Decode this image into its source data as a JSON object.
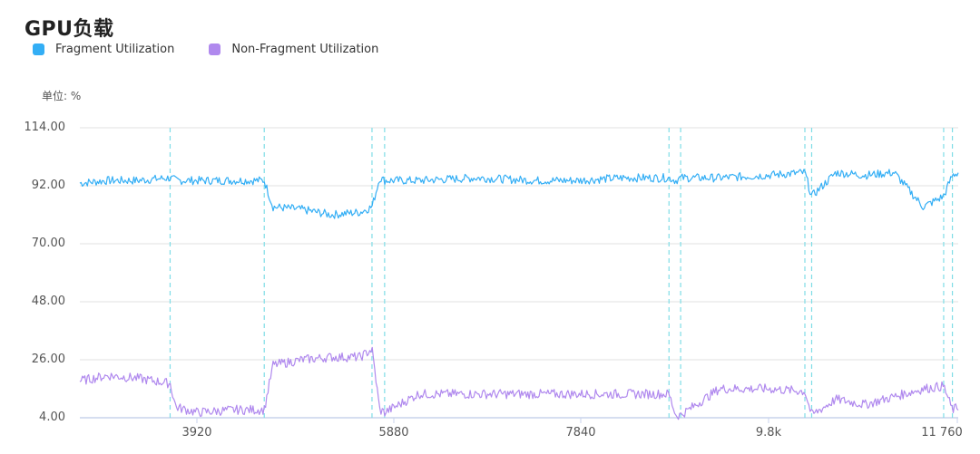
{
  "header": {
    "title": "GPU负载"
  },
  "legend": [
    {
      "label": "Fragment Utilization",
      "color": "#33aef5"
    },
    {
      "label": "Non-Fragment Utilization",
      "color": "#b089ee"
    }
  ],
  "unit_label": "单位: %",
  "chart_data": {
    "type": "line",
    "title": "GPU负载",
    "ylabel": "单位: %",
    "xlabel": "",
    "ylim": [
      4,
      114
    ],
    "yticks": [
      "114.00",
      "92.00",
      "70.00",
      "48.00",
      "26.00",
      "4.00"
    ],
    "xticks": [
      "3920",
      "5880",
      "7840",
      "9.8k",
      "11 760"
    ],
    "xlim": [
      2710,
      11760
    ],
    "grid": true,
    "legend_position": "top-left",
    "marker_lines_x": [
      3640,
      4610,
      5720,
      5850,
      8780,
      8900,
      10180,
      10250,
      11610,
      11700
    ],
    "x": [
      2710,
      3000,
      3300,
      3640,
      3700,
      3920,
      4300,
      4610,
      4700,
      5000,
      5300,
      5600,
      5720,
      5800,
      5850,
      6200,
      6800,
      7400,
      7840,
      8300,
      8780,
      8850,
      8900,
      9300,
      9800,
      10180,
      10250,
      10500,
      10800,
      11100,
      11400,
      11610,
      11700,
      11760
    ],
    "series": [
      {
        "name": "Fragment Utilization",
        "color": "#33aef5",
        "values": [
          93,
          94,
          94,
          95,
          94,
          94,
          94,
          94,
          84,
          83,
          81,
          82,
          84,
          95,
          94,
          94,
          95,
          94,
          94,
          95,
          95,
          94,
          95,
          95,
          96,
          97,
          88,
          97,
          96,
          97,
          84,
          88,
          96,
          97
        ]
      },
      {
        "name": "Non-Fragment Utilization",
        "color": "#b089ee",
        "values": [
          18,
          20,
          19,
          17,
          8,
          6,
          7,
          7,
          24,
          26,
          27,
          27,
          30,
          7,
          6,
          13,
          13,
          13,
          13,
          13,
          13,
          5,
          5,
          15,
          15,
          14,
          5,
          11,
          9,
          12,
          15,
          16,
          7,
          8
        ]
      }
    ]
  }
}
